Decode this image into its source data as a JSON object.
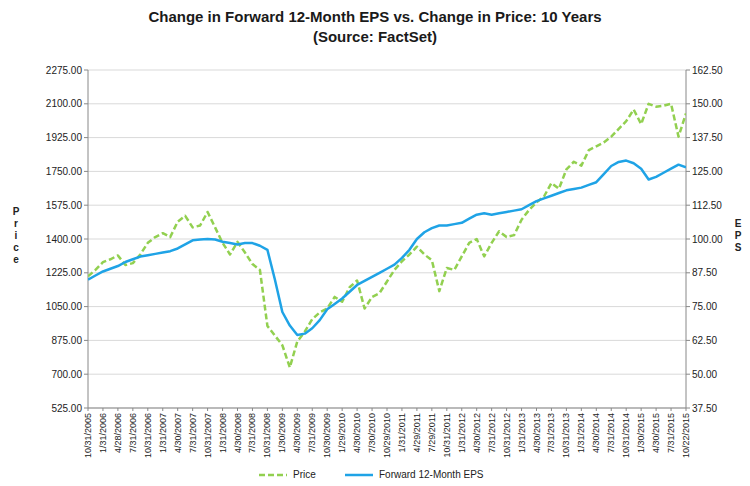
{
  "chart_data": {
    "type": "line",
    "title": "Change in Forward 12-Month EPS vs. Change in Price: 10 Years",
    "subtitle": "(Source: FactSet)",
    "y_label": "Price",
    "y2_label": "EPS",
    "categories": [
      "10/31/2005",
      null,
      "1/31/2006",
      null,
      "4/28/2006",
      null,
      "7/31/2006",
      null,
      "10/31/2006",
      null,
      "1/31/2007",
      null,
      "4/30/2007",
      null,
      "7/31/2007",
      null,
      "10/31/2007",
      null,
      "1/31/2008",
      null,
      "4/30/2008",
      null,
      "7/31/2008",
      null,
      "10/31/2008",
      null,
      "1/30/2009",
      null,
      "4/30/2009",
      null,
      "7/31/2009",
      null,
      "10/30/2009",
      null,
      "1/29/2010",
      null,
      "4/30/2010",
      null,
      "7/30/2010",
      null,
      "10/29/2010",
      null,
      "1/31/2011",
      null,
      "4/29/2011",
      null,
      "7/29/2011",
      null,
      "10/31/2011",
      null,
      "1/31/2012",
      null,
      "4/30/2012",
      null,
      "7/31/2012",
      null,
      "10/31/2012",
      null,
      "1/31/2013",
      null,
      "4/30/2013",
      null,
      "7/31/2013",
      null,
      "10/31/2013",
      null,
      "1/31/2014",
      null,
      "4/30/2014",
      null,
      "7/31/2014",
      null,
      "10/31/2014",
      null,
      "1/30/2015",
      null,
      "4/30/2015",
      null,
      "7/31/2015",
      null,
      "10/22/2015"
    ],
    "series": [
      {
        "name": "Price",
        "color": "#92D050",
        "line_style": "dashed",
        "values": [
          1207,
          1240,
          1280,
          1295,
          1315,
          1265,
          1275,
          1320,
          1380,
          1410,
          1430,
          1410,
          1490,
          1520,
          1460,
          1470,
          1540,
          1460,
          1380,
          1320,
          1385,
          1330,
          1270,
          1240,
          950,
          900,
          850,
          735,
          870,
          920,
          985,
          1020,
          1040,
          1100,
          1075,
          1150,
          1185,
          1040,
          1100,
          1120,
          1180,
          1240,
          1285,
          1320,
          1360,
          1320,
          1290,
          1130,
          1250,
          1240,
          1310,
          1380,
          1400,
          1310,
          1380,
          1440,
          1410,
          1420,
          1500,
          1550,
          1590,
          1620,
          1690,
          1660,
          1760,
          1800,
          1780,
          1860,
          1880,
          1900,
          1930,
          1970,
          2010,
          2070,
          1995,
          2100,
          2085,
          2090,
          2100,
          1930,
          2050
        ]
      },
      {
        "name": "Forward 12-Month EPS",
        "color": "#1FA3E6",
        "line_style": "solid",
        "axis": "y2",
        "values": [
          85.0,
          86.5,
          88.0,
          89.0,
          90.0,
          91.5,
          92.5,
          93.5,
          94.0,
          94.5,
          95.0,
          95.5,
          96.5,
          98.0,
          99.5,
          99.8,
          100.0,
          99.8,
          99.0,
          98.5,
          98.0,
          98.5,
          98.5,
          97.5,
          96.0,
          85.0,
          73.0,
          68.0,
          64.5,
          65.0,
          67.0,
          70.0,
          74.0,
          76.0,
          78.0,
          80.5,
          83.0,
          84.5,
          86.0,
          87.5,
          89.0,
          90.5,
          93.0,
          96.0,
          100.0,
          102.5,
          104.0,
          105.0,
          105.0,
          105.5,
          106.0,
          107.5,
          109.0,
          109.5,
          109.0,
          109.5,
          110.0,
          110.5,
          111.0,
          112.5,
          114.0,
          115.0,
          116.0,
          117.0,
          118.0,
          118.5,
          119.0,
          120.0,
          121.0,
          124.0,
          127.0,
          128.5,
          129.0,
          128.0,
          126.0,
          122.0,
          123.0,
          124.5,
          126.0,
          127.5,
          126.5
        ]
      }
    ],
    "ylim": [
      525,
      2275
    ],
    "yticks": [
      {
        "value": 525,
        "label": "525.00"
      },
      {
        "value": 700,
        "label": "700.00"
      },
      {
        "value": 875,
        "label": "875.00"
      },
      {
        "value": 1050,
        "label": "1050.00"
      },
      {
        "value": 1225,
        "label": "1225.00"
      },
      {
        "value": 1400,
        "label": "1400.00"
      },
      {
        "value": 1575,
        "label": "1575.00"
      },
      {
        "value": 1750,
        "label": "1750.00"
      },
      {
        "value": 1925,
        "label": "1925.00"
      },
      {
        "value": 2100,
        "label": "2100.00"
      },
      {
        "value": 2275,
        "label": "2275.00"
      }
    ],
    "y2lim": [
      37.5,
      162.5
    ],
    "y2ticks": [
      {
        "value": 37.5,
        "label": "37.50"
      },
      {
        "value": 50,
        "label": "50.00"
      },
      {
        "value": 62.5,
        "label": "62.50"
      },
      {
        "value": 75,
        "label": "75.00"
      },
      {
        "value": 87.5,
        "label": "87.50"
      },
      {
        "value": 100,
        "label": "100.00"
      },
      {
        "value": 112.5,
        "label": "112.50"
      },
      {
        "value": 125,
        "label": "125.00"
      },
      {
        "value": 137.5,
        "label": "137.50"
      },
      {
        "value": 150,
        "label": "150.00"
      },
      {
        "value": 162.5,
        "label": "162.50"
      }
    ],
    "grid": true,
    "legend": "bottom"
  }
}
